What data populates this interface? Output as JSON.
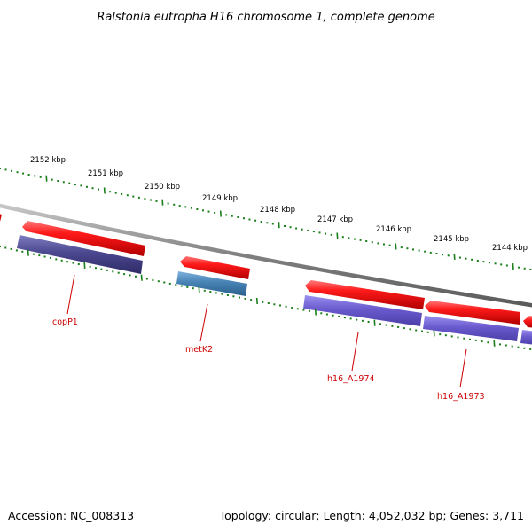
{
  "title": "Ralstonia eutropha H16 chromosome 1, complete genome",
  "footer": {
    "accession": "Accession: NC_008313",
    "summary": "Topology: circular; Length: 4,052,032 bp; Genes: 3,711"
  },
  "colors": {
    "backbone": "#8c8c8c",
    "cds_red": "#ee0000",
    "gene_purple": "#6a5acd",
    "gene_dark": "#4b4890",
    "gene_blue": "#4682b4",
    "ruler": "#1a7f1a",
    "label": "#cc0000"
  },
  "ruler_ticks": [
    {
      "label": "2152 kbp"
    },
    {
      "label": "2151 kbp"
    },
    {
      "label": "2150 kbp"
    },
    {
      "label": "2149 kbp"
    },
    {
      "label": "2148 kbp"
    },
    {
      "label": "2147 kbp"
    },
    {
      "label": "2146 kbp"
    },
    {
      "label": "2145 kbp"
    },
    {
      "label": "2144 kbp"
    }
  ],
  "gene_labels": [
    {
      "name": "copP1"
    },
    {
      "name": "metK2"
    },
    {
      "name": "h16_A1974"
    },
    {
      "name": "h16_A1973"
    }
  ]
}
